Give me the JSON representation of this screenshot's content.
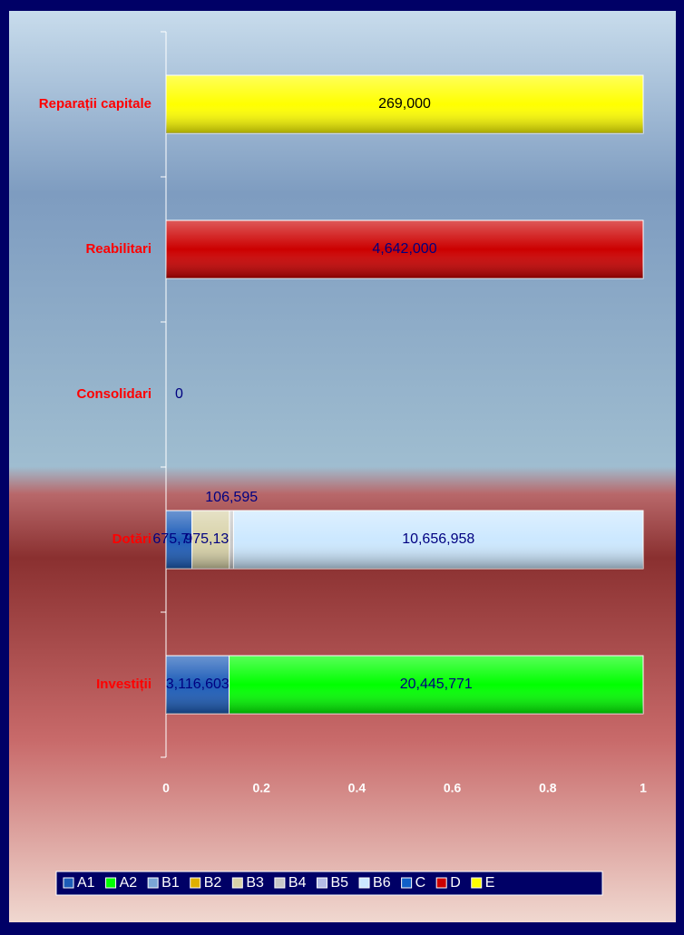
{
  "chart_data": {
    "type": "bar",
    "orientation": "horizontal",
    "stacked": "percent",
    "categories": [
      "Investiții",
      "Dotări",
      "Consolidari",
      "Reabilitari",
      "Reparații capitale"
    ],
    "series": [
      {
        "name": "A1",
        "color": "#1c5cb8",
        "values": [
          3116603,
          675706,
          null,
          null,
          null
        ],
        "value_labels": [
          "3,116,603",
          "675,706",
          null,
          null,
          null
        ]
      },
      {
        "name": "A2",
        "color": "#00ff00",
        "values": [
          20445771,
          null,
          null,
          null,
          null
        ],
        "value_labels": [
          "20,445,771",
          null,
          null,
          null,
          null
        ]
      },
      {
        "name": "B1",
        "color": "#7aa6d6",
        "values": [
          null,
          null,
          null,
          null,
          null
        ]
      },
      {
        "name": "B2",
        "color": "#e0b000",
        "values": [
          null,
          null,
          null,
          null,
          null
        ]
      },
      {
        "name": "B3",
        "color": "#d8d2a8",
        "values": [
          null,
          975131,
          null,
          null,
          null
        ],
        "value_labels": [
          null,
          "975,131",
          null,
          null,
          null
        ]
      },
      {
        "name": "B4",
        "color": "#c8c8c8",
        "values": [
          null,
          106595,
          null,
          null,
          null
        ],
        "value_labels": [
          null,
          "106,595",
          null,
          null,
          null
        ]
      },
      {
        "name": "B5",
        "color": "#b4bce6",
        "values": [
          null,
          null,
          null,
          null,
          null
        ]
      },
      {
        "name": "B6",
        "color": "#cce8ff",
        "values": [
          null,
          10656958,
          null,
          null,
          null
        ],
        "value_labels": [
          null,
          "10,656,958",
          null,
          null,
          null
        ]
      },
      {
        "name": "C",
        "color": "#1060c8",
        "values": [
          null,
          null,
          null,
          null,
          null
        ]
      },
      {
        "name": "D",
        "color": "#cc0000",
        "values": [
          null,
          null,
          0,
          4642000,
          null
        ],
        "value_labels": [
          null,
          null,
          "0",
          "4,642,000",
          null
        ]
      },
      {
        "name": "E",
        "color": "#ffff00",
        "values": [
          null,
          null,
          null,
          null,
          269000
        ],
        "value_labels": [
          null,
          null,
          null,
          null,
          "269,000"
        ]
      }
    ],
    "xlim": [
      0,
      1
    ],
    "xticks": [
      0,
      0.2,
      0.4,
      0.6,
      0.8,
      1
    ],
    "legend": "bottom"
  }
}
